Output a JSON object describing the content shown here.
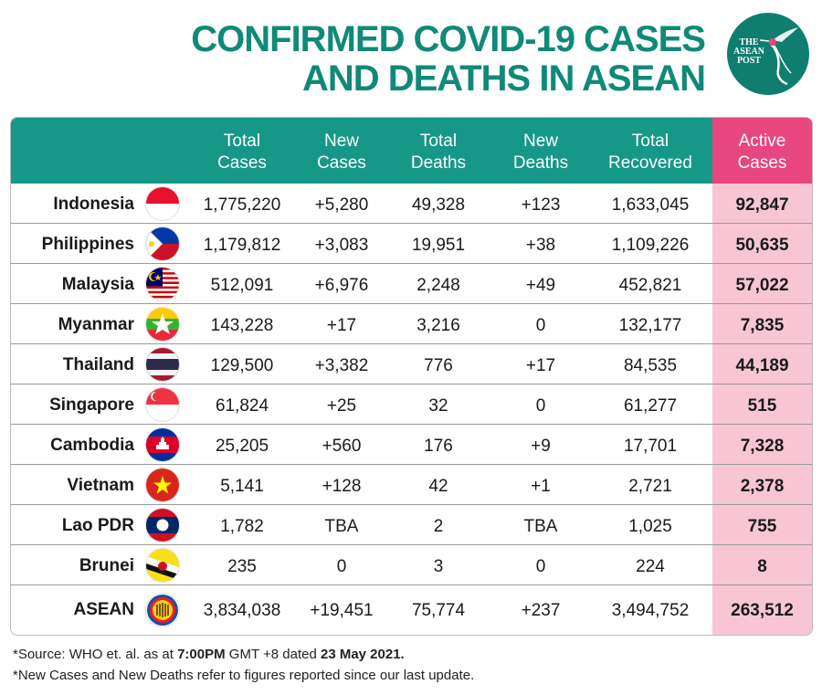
{
  "title": {
    "line1": "CONFIRMED COVID-19 CASES",
    "line2": "AND DEATHS IN ASEAN"
  },
  "logo": {
    "line1": "THE",
    "line2": "ASEAN",
    "line3": "POST"
  },
  "colors": {
    "brand_green": "#169889",
    "title_green": "#0f8a77",
    "active_pink": "#e8467e",
    "active_bg": "#f8c5d4"
  },
  "table": {
    "headers": [
      [
        "Total",
        "Cases"
      ],
      [
        "New",
        "Cases"
      ],
      [
        "Total",
        "Deaths"
      ],
      [
        "New",
        "Deaths"
      ],
      [
        "Total",
        "Recovered"
      ],
      [
        "Active",
        "Cases"
      ]
    ],
    "rows": [
      {
        "country": "Indonesia",
        "flag": "indonesia-flag-icon",
        "total_cases": "1,775,220",
        "new_cases": "+5,280",
        "total_deaths": "49,328",
        "new_deaths": "+123",
        "total_recovered": "1,633,045",
        "active_cases": "92,847"
      },
      {
        "country": "Philippines",
        "flag": "philippines-flag-icon",
        "total_cases": "1,179,812",
        "new_cases": "+3,083",
        "total_deaths": "19,951",
        "new_deaths": "+38",
        "total_recovered": "1,109,226",
        "active_cases": "50,635"
      },
      {
        "country": "Malaysia",
        "flag": "malaysia-flag-icon",
        "total_cases": "512,091",
        "new_cases": "+6,976",
        "total_deaths": "2,248",
        "new_deaths": "+49",
        "total_recovered": "452,821",
        "active_cases": "57,022"
      },
      {
        "country": "Myanmar",
        "flag": "myanmar-flag-icon",
        "total_cases": "143,228",
        "new_cases": "+17",
        "total_deaths": "3,216",
        "new_deaths": "0",
        "total_recovered": "132,177",
        "active_cases": "7,835"
      },
      {
        "country": "Thailand",
        "flag": "thailand-flag-icon",
        "total_cases": "129,500",
        "new_cases": "+3,382",
        "total_deaths": "776",
        "new_deaths": "+17",
        "total_recovered": "84,535",
        "active_cases": "44,189"
      },
      {
        "country": "Singapore",
        "flag": "singapore-flag-icon",
        "total_cases": "61,824",
        "new_cases": "+25",
        "total_deaths": "32",
        "new_deaths": "0",
        "total_recovered": "61,277",
        "active_cases": "515"
      },
      {
        "country": "Cambodia",
        "flag": "cambodia-flag-icon",
        "total_cases": "25,205",
        "new_cases": "+560",
        "total_deaths": "176",
        "new_deaths": "+9",
        "total_recovered": "17,701",
        "active_cases": "7,328"
      },
      {
        "country": "Vietnam",
        "flag": "vietnam-flag-icon",
        "total_cases": "5,141",
        "new_cases": "+128",
        "total_deaths": "42",
        "new_deaths": "+1",
        "total_recovered": "2,721",
        "active_cases": "2,378"
      },
      {
        "country": "Lao PDR",
        "flag": "laos-flag-icon",
        "total_cases": "1,782",
        "new_cases": "TBA",
        "total_deaths": "2",
        "new_deaths": "TBA",
        "total_recovered": "1,025",
        "active_cases": "755"
      },
      {
        "country": "Brunei",
        "flag": "brunei-flag-icon",
        "total_cases": "235",
        "new_cases": "0",
        "total_deaths": "3",
        "new_deaths": "0",
        "total_recovered": "224",
        "active_cases": "8"
      },
      {
        "country": "ASEAN",
        "flag": "asean-emblem-icon",
        "total_cases": "3,834,038",
        "new_cases": "+19,451",
        "total_deaths": "75,774",
        "new_deaths": "+237",
        "total_recovered": "3,494,752",
        "active_cases": "263,512"
      }
    ]
  },
  "footnotes": {
    "source_prefix": "*Source: WHO et. al. as at ",
    "source_time": "7:00PM",
    "source_mid": " GMT +8 dated ",
    "source_date": "23 May 2021.",
    "note": "*New Cases and New Deaths refer to figures reported since our last update."
  }
}
